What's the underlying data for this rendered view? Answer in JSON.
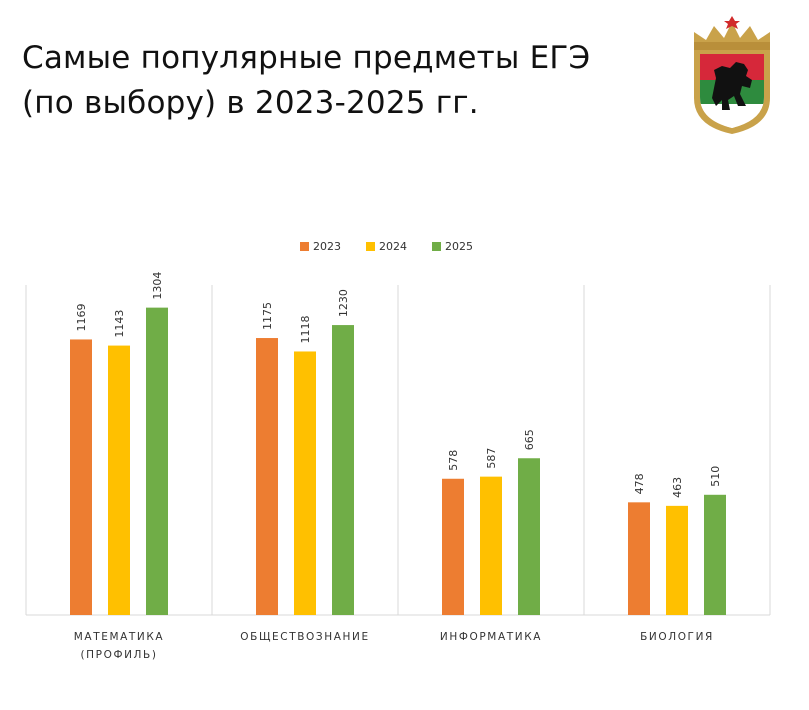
{
  "header": {
    "title_line1": "Самые популярные предметы ЕГЭ",
    "title_line2": "(по выбору) в 2023-2025 гг."
  },
  "emblem": {
    "icon": "karelia-coat-of-arms-icon"
  },
  "colors": {
    "2023": "#ED7D31",
    "2024": "#FFC000",
    "2025": "#70AD47",
    "grid": "#D9D9D9"
  },
  "chart_data": {
    "type": "bar",
    "categories": [
      [
        "МАТЕМАТИКА",
        "(ПРОФИЛЬ)"
      ],
      [
        "ОБЩЕСТВОЗНАНИЕ"
      ],
      [
        "ИНФОРМАТИКА"
      ],
      [
        "БИОЛОГИЯ"
      ]
    ],
    "series": [
      {
        "name": "2023",
        "values": [
          1169,
          1175,
          578,
          478
        ]
      },
      {
        "name": "2024",
        "values": [
          1143,
          1118,
          587,
          463
        ]
      },
      {
        "name": "2025",
        "values": [
          1304,
          1230,
          665,
          510
        ]
      }
    ],
    "ylim": [
      0,
      1400
    ],
    "legend": "top",
    "grid": "vertical-category-separators"
  }
}
